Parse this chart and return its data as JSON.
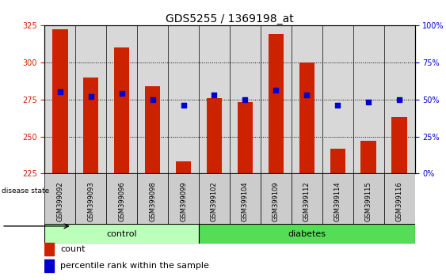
{
  "title": "GDS5255 / 1369198_at",
  "samples": [
    "GSM399092",
    "GSM399093",
    "GSM399096",
    "GSM399098",
    "GSM399099",
    "GSM399102",
    "GSM399104",
    "GSM399109",
    "GSM399112",
    "GSM399114",
    "GSM399115",
    "GSM399116"
  ],
  "counts": [
    322,
    290,
    310,
    284,
    233,
    276,
    273,
    319,
    300,
    242,
    247,
    263
  ],
  "percentiles": [
    55,
    52,
    54,
    50,
    46,
    53,
    50,
    56,
    53,
    46,
    48,
    50
  ],
  "ylim": [
    225,
    325
  ],
  "ylim_right": [
    0,
    100
  ],
  "yticks_left": [
    225,
    250,
    275,
    300,
    325
  ],
  "yticks_right": [
    0,
    25,
    50,
    75,
    100
  ],
  "bar_color": "#cc2200",
  "dot_color": "#0000cc",
  "control_samples": 5,
  "group_labels": [
    "control",
    "diabetes"
  ],
  "group_ctrl_color": "#bbffbb",
  "group_diab_color": "#55dd55",
  "disease_state_label": "disease state",
  "legend_items": [
    "count",
    "percentile rank within the sample"
  ],
  "background_color": "#ffffff",
  "plot_bg_color": "#d8d8d8",
  "grid_color": "#000000",
  "title_fontsize": 10,
  "tick_fontsize": 7
}
